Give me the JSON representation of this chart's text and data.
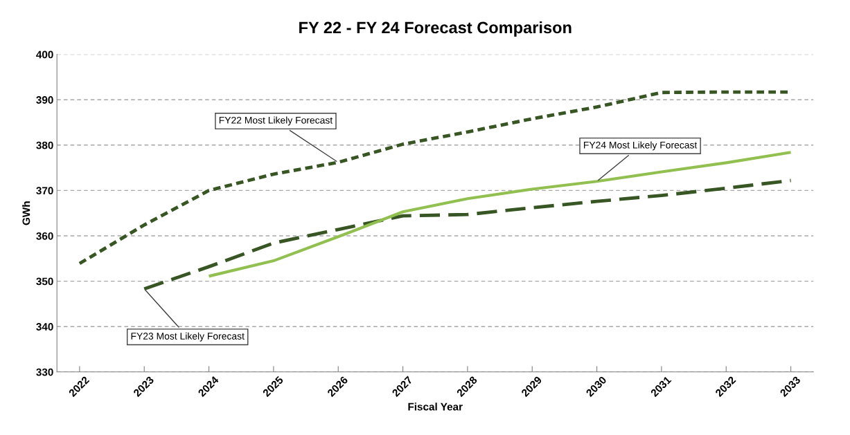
{
  "chart_data": {
    "type": "line",
    "title": "FY 22 - FY 24 Forecast Comparison",
    "xlabel": "Fiscal Year",
    "ylabel": "GWh",
    "categories": [
      "2022",
      "2023",
      "2024",
      "2025",
      "2026",
      "2027",
      "2028",
      "2029",
      "2030",
      "2031",
      "2032",
      "2033"
    ],
    "series": [
      {
        "color": "#375623",
        "line_style": "dotted",
        "values": [
          353.9,
          362.4,
          370.0,
          373.6,
          376.2,
          380.2,
          382.9,
          385.8,
          388.4,
          391.6,
          391.7,
          391.7
        ]
      },
      {
        "color": "#375623",
        "line_style": "dashed",
        "values": [
          null,
          348.3,
          353.2,
          358.4,
          361.4,
          364.4,
          364.7,
          366.2,
          367.6,
          368.9,
          370.5,
          372.2
        ]
      },
      {
        "color": "#92c050",
        "line_style": "solid",
        "values": [
          null,
          null,
          351.1,
          354.5,
          359.8,
          365.3,
          368.2,
          370.3,
          372.0,
          374.1,
          376.1,
          378.4
        ]
      }
    ],
    "annotations": [
      {
        "text": "FY22 Most Likely Forecast",
        "x": "2026",
        "y": 376.2
      },
      {
        "text": "FY23 Most Likely Forecast",
        "x": "2023",
        "y": 348.3
      },
      {
        "text": "FY24 Most Likely Forecast",
        "x": "2030",
        "y": 372.0
      }
    ],
    "ylim": [
      330,
      400
    ],
    "yticks": [
      330,
      340,
      350,
      360,
      370,
      380,
      390,
      400
    ],
    "grid": "y",
    "legend": false,
    "marker": "none"
  }
}
